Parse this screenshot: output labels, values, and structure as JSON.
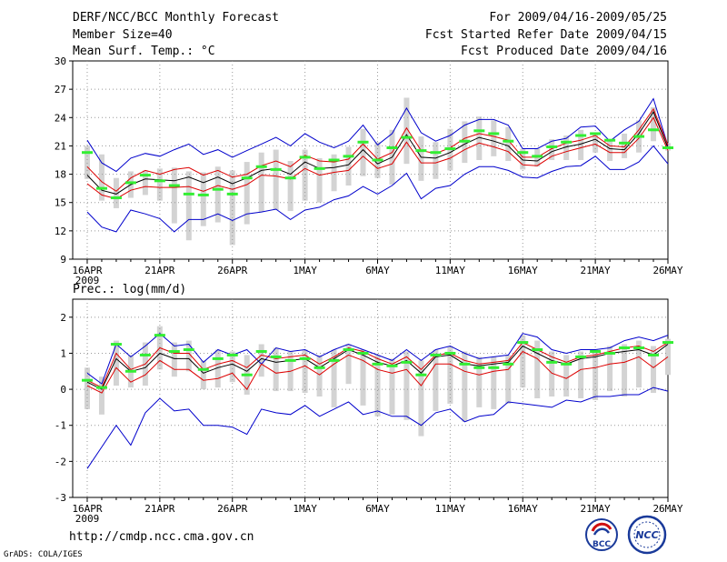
{
  "header": {
    "title": "DERF/NCC/BCC Monthly Forecast",
    "member_size": "Member Size=40",
    "variable": "Mean Surf. Temp.: °C",
    "period": "For 2009/04/16-2009/05/25",
    "refer_date": "Fcst Started Refer Date 2009/04/15",
    "produced_date": "Fcst Produced Date 2009/04/16"
  },
  "footer": {
    "url": "http://cmdp.ncc.cma.gov.cn",
    "credit": "GrADS: COLA/IGES",
    "logo_left": "BCC",
    "logo_right": "NCC"
  },
  "colors": {
    "envelope": "#0000cc",
    "spread": "#dd0000",
    "mean": "#000000",
    "box": "#d3d3d3",
    "median": "#33ee33",
    "grid": "#999999"
  },
  "chart_data": [
    {
      "type": "line",
      "title": "Mean Surf. Temp.: °C",
      "ylim": [
        9,
        30
      ],
      "yticks": [
        9,
        12,
        15,
        18,
        21,
        24,
        27,
        30
      ],
      "xticks": [
        {
          "day": 0,
          "label": "16APR",
          "sub": "2009"
        },
        {
          "day": 5,
          "label": "21APR"
        },
        {
          "day": 10,
          "label": "26APR"
        },
        {
          "day": 15,
          "label": "1MAY"
        },
        {
          "day": 20,
          "label": "6MAY"
        },
        {
          "day": 25,
          "label": "11MAY"
        },
        {
          "day": 30,
          "label": "16MAY"
        },
        {
          "day": 35,
          "label": "21MAY"
        },
        {
          "day": 40,
          "label": "26MAY"
        }
      ],
      "xlim": [
        -1,
        40
      ],
      "grid": true,
      "series": [
        {
          "name": "max",
          "color": "#0000cc",
          "values": [
            21.6,
            19.2,
            18.3,
            19.7,
            20.2,
            19.9,
            20.6,
            21.2,
            20.1,
            20.6,
            19.8,
            20.5,
            21.2,
            21.9,
            21.0,
            22.3,
            21.4,
            20.8,
            21.5,
            23.2,
            21.1,
            22.3,
            25.0,
            22.4,
            21.5,
            22.1,
            23.2,
            23.8,
            23.8,
            23.2,
            20.7,
            20.7,
            21.5,
            21.8,
            23.0,
            23.1,
            21.5,
            22.7,
            23.6,
            26.0,
            21.0
          ]
        },
        {
          "name": "upper",
          "color": "#dd0000",
          "values": [
            18.8,
            17.2,
            16.2,
            17.6,
            18.4,
            18.0,
            18.5,
            18.7,
            17.9,
            18.4,
            17.7,
            18.0,
            18.9,
            19.4,
            18.8,
            20.0,
            19.4,
            19.3,
            19.6,
            21.2,
            19.6,
            20.3,
            22.9,
            20.5,
            20.2,
            20.8,
            21.8,
            22.3,
            22.0,
            21.6,
            19.8,
            19.8,
            20.7,
            21.3,
            21.6,
            22.1,
            21.0,
            20.9,
            22.7,
            24.9,
            21.1
          ]
        },
        {
          "name": "mean",
          "color": "#000000",
          "values": [
            17.9,
            16.3,
            15.9,
            16.9,
            17.5,
            17.4,
            17.3,
            17.7,
            17.1,
            17.7,
            17.0,
            17.6,
            18.4,
            18.6,
            18.0,
            19.3,
            18.6,
            18.7,
            19.0,
            20.6,
            19.1,
            19.8,
            22.2,
            19.8,
            19.7,
            20.3,
            21.2,
            21.9,
            21.5,
            21.0,
            19.5,
            19.4,
            20.4,
            20.9,
            21.2,
            21.7,
            20.7,
            20.6,
            22.3,
            24.6,
            20.8
          ]
        },
        {
          "name": "lower",
          "color": "#dd0000",
          "values": [
            17.0,
            15.8,
            15.4,
            16.3,
            16.7,
            16.6,
            16.6,
            16.7,
            16.2,
            16.8,
            16.4,
            16.9,
            17.9,
            17.8,
            17.5,
            18.6,
            17.9,
            18.2,
            18.4,
            19.9,
            18.6,
            19.1,
            21.4,
            19.2,
            19.2,
            19.7,
            20.6,
            21.3,
            20.9,
            20.4,
            19.0,
            18.9,
            19.9,
            20.4,
            20.8,
            21.2,
            20.3,
            20.3,
            21.8,
            24.0,
            20.5
          ]
        },
        {
          "name": "min",
          "color": "#0000cc",
          "values": [
            14.0,
            12.4,
            11.9,
            14.2,
            13.8,
            13.3,
            11.9,
            13.2,
            13.2,
            13.8,
            13.1,
            13.8,
            14.0,
            14.3,
            13.2,
            14.2,
            14.5,
            15.3,
            15.7,
            16.7,
            15.9,
            16.8,
            18.1,
            15.4,
            16.5,
            16.8,
            18.0,
            18.8,
            18.8,
            18.4,
            17.7,
            17.6,
            18.3,
            18.8,
            18.9,
            19.9,
            18.5,
            18.5,
            19.3,
            21.0,
            19.1
          ]
        }
      ],
      "boxes": [
        {
          "low": 17.5,
          "high": 21.0,
          "median": 20.3
        },
        {
          "low": 15.2,
          "high": 20.1,
          "median": 16.5
        },
        {
          "low": 14.4,
          "high": 17.6,
          "median": 15.5
        },
        {
          "low": 15.5,
          "high": 18.3,
          "median": 17.1
        },
        {
          "low": 15.8,
          "high": 18.4,
          "median": 17.9
        },
        {
          "low": 15.2,
          "high": 18.6,
          "median": 17.3
        },
        {
          "low": 12.8,
          "high": 18.7,
          "median": 16.8
        },
        {
          "low": 11.0,
          "high": 18.3,
          "median": 15.9
        },
        {
          "low": 12.5,
          "high": 18.2,
          "median": 15.8
        },
        {
          "low": 12.9,
          "high": 18.8,
          "median": 16.4
        },
        {
          "low": 10.5,
          "high": 18.4,
          "median": 15.9
        },
        {
          "low": 12.7,
          "high": 19.3,
          "median": 17.6
        },
        {
          "low": 14.0,
          "high": 20.3,
          "median": 18.8
        },
        {
          "low": 14.2,
          "high": 20.6,
          "median": 18.5
        },
        {
          "low": 14.1,
          "high": 19.4,
          "median": 17.6
        },
        {
          "low": 15.2,
          "high": 20.6,
          "median": 19.8
        },
        {
          "low": 15.0,
          "high": 19.7,
          "median": 18.6
        },
        {
          "low": 16.2,
          "high": 20.1,
          "median": 19.5
        },
        {
          "low": 16.8,
          "high": 20.9,
          "median": 19.9
        },
        {
          "low": 17.8,
          "high": 22.8,
          "median": 21.4
        },
        {
          "low": 17.6,
          "high": 21.4,
          "median": 19.5
        },
        {
          "low": 16.9,
          "high": 22.7,
          "median": 20.8
        },
        {
          "low": 19.1,
          "high": 26.1,
          "median": 21.9
        },
        {
          "low": 17.3,
          "high": 22.0,
          "median": 20.5
        },
        {
          "low": 17.5,
          "high": 21.4,
          "median": 20.3
        },
        {
          "low": 18.4,
          "high": 22.8,
          "median": 20.7
        },
        {
          "low": 19.2,
          "high": 23.6,
          "median": 21.5
        },
        {
          "low": 19.5,
          "high": 24.1,
          "median": 22.6
        },
        {
          "low": 19.9,
          "high": 23.7,
          "median": 22.3
        },
        {
          "low": 19.4,
          "high": 23.0,
          "median": 21.5
        },
        {
          "low": 18.5,
          "high": 20.7,
          "median": 20.3
        },
        {
          "low": 18.8,
          "high": 20.7,
          "median": 19.9
        },
        {
          "low": 19.5,
          "high": 21.7,
          "median": 20.9
        },
        {
          "low": 19.5,
          "high": 22.1,
          "median": 21.4
        },
        {
          "low": 19.5,
          "high": 22.7,
          "median": 22.1
        },
        {
          "low": 20.3,
          "high": 22.4,
          "median": 22.3
        },
        {
          "low": 19.4,
          "high": 21.6,
          "median": 21.6
        },
        {
          "low": 19.7,
          "high": 22.3,
          "median": 21.3
        },
        {
          "low": 20.3,
          "high": 23.7,
          "median": 22.0
        },
        {
          "low": 21.5,
          "high": 25.1,
          "median": 22.7
        },
        {
          "low": 20.5,
          "high": 21.3,
          "median": 20.8
        }
      ]
    },
    {
      "type": "line",
      "title": "Prec.: log(mm/d)",
      "ylim": [
        -3,
        2.5
      ],
      "yticks": [
        -3,
        -2,
        -1,
        0,
        1,
        2
      ],
      "xticks": [
        {
          "day": 0,
          "label": "16APR",
          "sub": "2009"
        },
        {
          "day": 5,
          "label": "21APR"
        },
        {
          "day": 10,
          "label": "26APR"
        },
        {
          "day": 15,
          "label": "1MAY"
        },
        {
          "day": 20,
          "label": "6MAY"
        },
        {
          "day": 25,
          "label": "11MAY"
        },
        {
          "day": 30,
          "label": "16MAY"
        },
        {
          "day": 35,
          "label": "21MAY"
        },
        {
          "day": 40,
          "label": "26MAY"
        }
      ],
      "xlim": [
        -1,
        40
      ],
      "grid": true,
      "series": [
        {
          "name": "max",
          "color": "#0000cc",
          "values": [
            0.45,
            0.15,
            1.25,
            0.9,
            1.2,
            1.55,
            1.2,
            1.25,
            0.75,
            1.1,
            0.95,
            1.1,
            0.7,
            1.15,
            1.05,
            1.1,
            0.9,
            1.1,
            1.25,
            1.1,
            0.95,
            0.8,
            1.1,
            0.8,
            1.1,
            1.2,
            1.0,
            0.85,
            0.9,
            0.95,
            1.55,
            1.45,
            1.1,
            1.0,
            1.1,
            1.1,
            1.15,
            1.35,
            1.45,
            1.35,
            1.5
          ]
        },
        {
          "name": "upper",
          "color": "#dd0000",
          "values": [
            0.25,
            0.05,
            1.0,
            0.55,
            0.7,
            1.15,
            1.0,
            1.0,
            0.55,
            0.7,
            0.8,
            0.6,
            0.95,
            0.85,
            0.9,
            0.95,
            0.7,
            0.9,
            1.15,
            1.05,
            0.85,
            0.7,
            0.9,
            0.55,
            0.95,
            1.0,
            0.8,
            0.7,
            0.75,
            0.8,
            1.3,
            1.1,
            0.9,
            0.75,
            0.9,
            0.95,
            1.05,
            1.15,
            1.2,
            1.05,
            1.3
          ]
        },
        {
          "name": "mean",
          "color": "#000000",
          "values": [
            0.2,
            0.0,
            0.85,
            0.5,
            0.6,
            1.0,
            0.85,
            0.85,
            0.45,
            0.6,
            0.7,
            0.5,
            0.85,
            0.75,
            0.8,
            0.85,
            0.6,
            0.85,
            1.1,
            0.95,
            0.75,
            0.65,
            0.8,
            0.45,
            0.9,
            0.95,
            0.7,
            0.65,
            0.7,
            0.75,
            1.2,
            1.0,
            0.8,
            0.7,
            0.85,
            0.9,
            1.0,
            1.05,
            1.1,
            0.95,
            1.25
          ]
        },
        {
          "name": "lower",
          "color": "#dd0000",
          "values": [
            0.1,
            -0.1,
            0.6,
            0.2,
            0.4,
            0.8,
            0.55,
            0.55,
            0.25,
            0.3,
            0.45,
            0.0,
            0.7,
            0.45,
            0.5,
            0.65,
            0.4,
            0.7,
            0.95,
            0.8,
            0.55,
            0.45,
            0.55,
            0.1,
            0.7,
            0.7,
            0.5,
            0.4,
            0.5,
            0.55,
            1.05,
            0.85,
            0.45,
            0.3,
            0.55,
            0.6,
            0.7,
            0.75,
            0.9,
            0.6,
            0.9
          ]
        },
        {
          "name": "min",
          "color": "#0000cc",
          "values": [
            -2.2,
            -1.6,
            -1.0,
            -1.55,
            -0.65,
            -0.25,
            -0.6,
            -0.55,
            -1.0,
            -1.0,
            -1.05,
            -1.25,
            -0.55,
            -0.65,
            -0.7,
            -0.45,
            -0.75,
            -0.55,
            -0.35,
            -0.7,
            -0.6,
            -0.75,
            -0.75,
            -1.0,
            -0.65,
            -0.55,
            -0.9,
            -0.75,
            -0.7,
            -0.35,
            -0.4,
            -0.45,
            -0.5,
            -0.3,
            -0.35,
            -0.2,
            -0.2,
            -0.15,
            -0.15,
            0.05,
            -0.05
          ]
        }
      ],
      "boxes": [
        {
          "low": -0.55,
          "high": 0.6,
          "median": 0.25
        },
        {
          "low": -0.7,
          "high": 0.35,
          "median": 0.05
        },
        {
          "low": 0.1,
          "high": 1.35,
          "median": 1.25
        },
        {
          "low": 0.05,
          "high": 0.95,
          "median": 0.5
        },
        {
          "low": 0.1,
          "high": 1.3,
          "median": 0.95
        },
        {
          "low": 0.55,
          "high": 1.75,
          "median": 1.5
        },
        {
          "low": 0.35,
          "high": 1.3,
          "median": 1.05
        },
        {
          "low": 0.5,
          "high": 1.35,
          "median": 1.1
        },
        {
          "low": 0.0,
          "high": 0.8,
          "median": 0.55
        },
        {
          "low": 0.05,
          "high": 1.1,
          "median": 0.85
        },
        {
          "low": 0.2,
          "high": 1.05,
          "median": 0.95
        },
        {
          "low": -0.15,
          "high": 0.95,
          "median": 0.4
        },
        {
          "low": 0.35,
          "high": 1.25,
          "median": 1.05
        },
        {
          "low": -0.05,
          "high": 1.15,
          "median": 0.9
        },
        {
          "low": -0.05,
          "high": 1.05,
          "median": 0.8
        },
        {
          "low": -0.1,
          "high": 1.1,
          "median": 0.85
        },
        {
          "low": -0.2,
          "high": 0.95,
          "median": 0.6
        },
        {
          "low": -0.5,
          "high": 1.1,
          "median": 0.8
        },
        {
          "low": 0.15,
          "high": 1.25,
          "median": 1.1
        },
        {
          "low": -0.45,
          "high": 1.1,
          "median": 1.0
        },
        {
          "low": -0.75,
          "high": 0.95,
          "median": 0.7
        },
        {
          "low": -0.7,
          "high": 0.85,
          "median": 0.65
        },
        {
          "low": -0.85,
          "high": 1.05,
          "median": 0.75
        },
        {
          "low": -1.3,
          "high": 0.8,
          "median": 0.4
        },
        {
          "low": -0.6,
          "high": 1.1,
          "median": 0.95
        },
        {
          "low": -0.4,
          "high": 1.2,
          "median": 1.0
        },
        {
          "low": -0.9,
          "high": 1.05,
          "median": 0.7
        },
        {
          "low": -0.5,
          "high": 0.9,
          "median": 0.6
        },
        {
          "low": -0.55,
          "high": 0.9,
          "median": 0.6
        },
        {
          "low": -0.4,
          "high": 0.95,
          "median": 0.7
        },
        {
          "low": 0.05,
          "high": 1.5,
          "median": 1.3
        },
        {
          "low": -0.25,
          "high": 1.35,
          "median": 1.1
        },
        {
          "low": -0.2,
          "high": 1.05,
          "median": 0.75
        },
        {
          "low": -0.2,
          "high": 0.95,
          "median": 0.7
        },
        {
          "low": -0.25,
          "high": 1.05,
          "median": 0.9
        },
        {
          "low": -0.3,
          "high": 1.1,
          "median": 1.05
        },
        {
          "low": -0.05,
          "high": 1.2,
          "median": 1.0
        },
        {
          "low": -0.2,
          "high": 1.25,
          "median": 1.15
        },
        {
          "low": 0.05,
          "high": 1.35,
          "median": 1.15
        },
        {
          "low": -0.1,
          "high": 1.2,
          "median": 0.95
        },
        {
          "low": 0.4,
          "high": 1.4,
          "median": 1.3
        }
      ]
    }
  ]
}
